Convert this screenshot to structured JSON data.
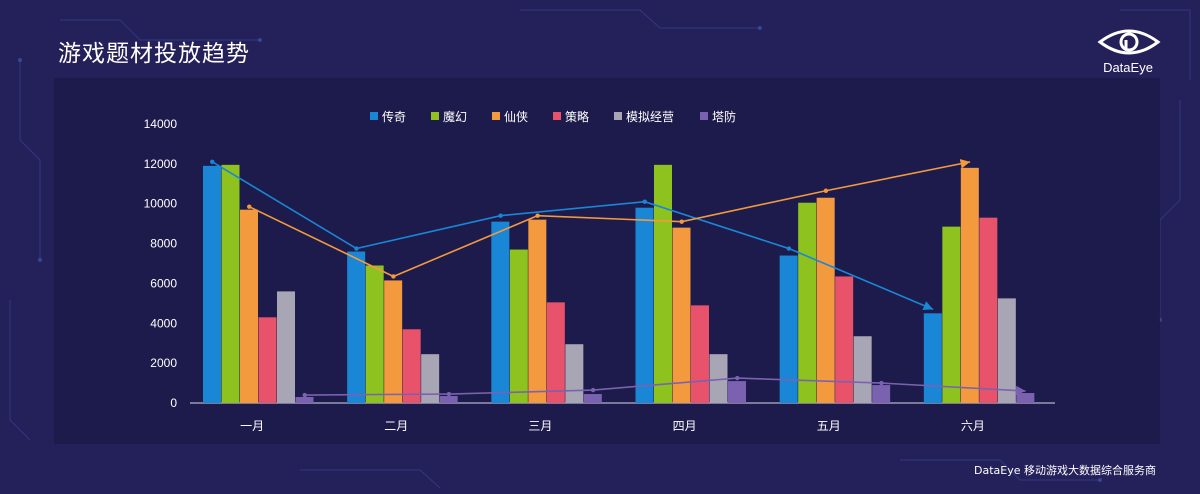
{
  "page": {
    "title": "游戏题材投放趋势",
    "brand": "DataEye",
    "footer": "DataEye 移动游戏大数据综合服务商"
  },
  "colors": {
    "background": "#24205a",
    "panel": "#1d1b4a",
    "axis_text": "#ffffff"
  },
  "chart_data": {
    "type": "bar",
    "title": "",
    "xlabel": "",
    "ylabel": "",
    "categories": [
      "一月",
      "二月",
      "三月",
      "四月",
      "五月",
      "六月"
    ],
    "ylim": [
      0,
      14000
    ],
    "yticks": [
      0,
      2000,
      4000,
      6000,
      8000,
      10000,
      12000,
      14000
    ],
    "grid": false,
    "legend_position": "top",
    "series": [
      {
        "name": "传奇",
        "color": "#1a86d6",
        "values": [
          11900,
          7600,
          9100,
          9800,
          7400,
          4500
        ]
      },
      {
        "name": "魔幻",
        "color": "#8dc21f",
        "values": [
          11950,
          6900,
          7700,
          11950,
          10050,
          8850
        ]
      },
      {
        "name": "仙侠",
        "color": "#f39a3e",
        "values": [
          9700,
          6150,
          9200,
          8800,
          10300,
          11800
        ]
      },
      {
        "name": "策略",
        "color": "#e8526b",
        "values": [
          4300,
          3700,
          5050,
          4900,
          6350,
          9300
        ]
      },
      {
        "name": "模拟经营",
        "color": "#a8a6b4",
        "values": [
          5600,
          2450,
          2950,
          2450,
          3350,
          5250
        ]
      },
      {
        "name": "塔防",
        "color": "#7a62b0",
        "values": [
          300,
          350,
          450,
          1100,
          900,
          500
        ]
      }
    ],
    "trend_lines": [
      {
        "series": "传奇",
        "color": "#1a86d6",
        "values": [
          12100,
          7750,
          9400,
          10100,
          7750,
          4700
        ]
      },
      {
        "series": "仙侠",
        "color": "#f39a3e",
        "values": [
          9850,
          6350,
          9400,
          9100,
          10650,
          12100
        ]
      },
      {
        "series": "塔防",
        "color": "#7a62b0",
        "values": [
          400,
          450,
          650,
          1250,
          1000,
          600
        ]
      }
    ]
  }
}
